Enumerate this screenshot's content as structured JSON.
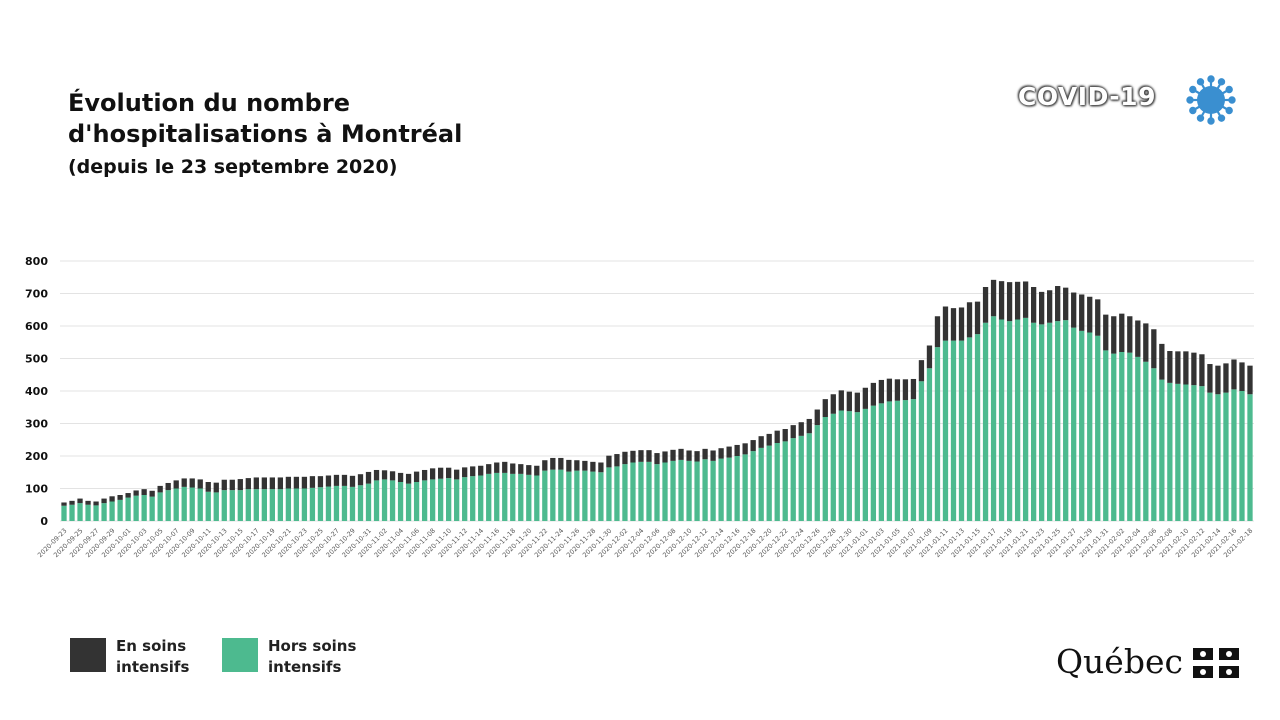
{
  "title": {
    "line1": "Évolution du nombre",
    "line2": "d'hospitalisations à Montréal",
    "subtitle": "(depuis le 23 septembre 2020)"
  },
  "badge": {
    "text": "COVID-19",
    "icon": "coronavirus-icon"
  },
  "brand": {
    "name": "Québec",
    "icon": "fleur-de-lis-flag-icon"
  },
  "legend": [
    {
      "label": "En soins intensifs",
      "color": "#333333"
    },
    {
      "label": "Hors soins intensifs",
      "color": "#4dba8f"
    }
  ],
  "colors": {
    "icu": "#333333",
    "non_icu": "#4dba8f",
    "virus": "#3a8fd0"
  },
  "chart_data": {
    "type": "bar",
    "stacked": true,
    "title": "Évolution du nombre d'hospitalisations à Montréal",
    "ylim": [
      0,
      800
    ],
    "yticks": [
      0,
      100,
      200,
      300,
      400,
      500,
      600,
      700,
      800
    ],
    "grid": true,
    "start_date": "2020-09-23",
    "x_tick_every": 2,
    "series": [
      {
        "name": "Hors soins intensifs",
        "values": [
          47,
          50,
          55,
          50,
          48,
          55,
          60,
          65,
          72,
          78,
          80,
          75,
          88,
          95,
          100,
          105,
          103,
          100,
          90,
          88,
          95,
          95,
          95,
          98,
          98,
          98,
          98,
          98,
          100,
          100,
          100,
          102,
          104,
          106,
          108,
          108,
          105,
          110,
          115,
          125,
          128,
          125,
          120,
          115,
          120,
          125,
          128,
          130,
          132,
          128,
          135,
          138,
          140,
          145,
          148,
          148,
          145,
          145,
          142,
          140,
          155,
          158,
          158,
          152,
          155,
          155,
          152,
          150,
          165,
          168,
          175,
          180,
          182,
          182,
          175,
          180,
          185,
          188,
          185,
          183,
          190,
          185,
          192,
          195,
          200,
          205,
          215,
          225,
          232,
          240,
          245,
          255,
          262,
          270,
          295,
          320,
          330,
          340,
          338,
          335,
          345,
          355,
          362,
          368,
          370,
          372,
          375,
          430,
          470,
          535,
          555,
          555,
          555,
          565,
          575,
          610,
          630,
          620,
          615,
          620,
          625,
          610,
          605,
          610,
          615,
          618,
          595,
          585,
          580,
          570,
          525,
          515,
          520,
          518,
          505,
          490,
          470,
          435,
          425,
          422,
          420,
          418,
          415,
          395,
          390,
          395,
          405,
          400,
          390
        ]
      },
      {
        "name": "En soins intensifs",
        "values": [
          10,
          12,
          14,
          12,
          12,
          14,
          16,
          15,
          14,
          16,
          18,
          18,
          20,
          22,
          25,
          26,
          28,
          28,
          30,
          30,
          32,
          32,
          34,
          34,
          36,
          36,
          36,
          36,
          36,
          36,
          36,
          36,
          34,
          34,
          34,
          34,
          34,
          34,
          36,
          32,
          28,
          28,
          28,
          30,
          32,
          32,
          34,
          34,
          32,
          30,
          30,
          30,
          30,
          30,
          32,
          34,
          32,
          30,
          30,
          30,
          32,
          36,
          36,
          36,
          32,
          30,
          30,
          30,
          36,
          38,
          38,
          36,
          36,
          36,
          34,
          34,
          34,
          34,
          32,
          32,
          32,
          32,
          32,
          34,
          34,
          34,
          34,
          36,
          36,
          38,
          38,
          40,
          42,
          44,
          48,
          55,
          60,
          62,
          60,
          60,
          65,
          70,
          72,
          70,
          66,
          64,
          62,
          65,
          70,
          95,
          105,
          100,
          102,
          108,
          100,
          110,
          112,
          118,
          120,
          116,
          112,
          110,
          100,
          100,
          108,
          100,
          108,
          112,
          110,
          112,
          110,
          115,
          118,
          112,
          112,
          118,
          120,
          110,
          98,
          100,
          102,
          100,
          98,
          88,
          88,
          90,
          92,
          88,
          88
        ]
      }
    ]
  }
}
